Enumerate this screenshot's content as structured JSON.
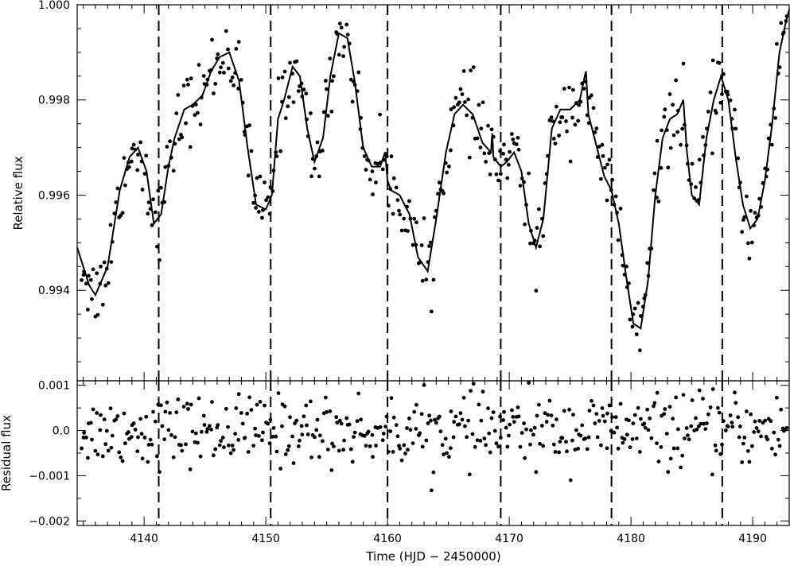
{
  "chart_data": [
    {
      "type": "scatter",
      "ylabel": "Relative flux",
      "xlim": [
        4134.5,
        4193
      ],
      "ylim": [
        0.9921,
        1.0
      ],
      "yticks": [
        "1.000",
        "0.998",
        "0.996",
        "0.994"
      ],
      "ytick_values": [
        1.0,
        0.998,
        0.996,
        0.994
      ],
      "vlines": [
        4141.2,
        4150.4,
        4160.0,
        4169.3,
        4178.4,
        4187.5
      ],
      "model_curve": {
        "x": [
          4134.5,
          4135.5,
          4136.0,
          4137.0,
          4138.0,
          4138.8,
          4139.5,
          4140.2,
          4140.8,
          4141.4,
          4142.0,
          4142.5,
          4143.3,
          4144.0,
          4144.8,
          4145.5,
          4146.2,
          4147.0,
          4147.8,
          4148.5,
          4149.2,
          4150.0,
          4150.5,
          4151.0,
          4151.5,
          4152.2,
          4152.8,
          4153.4,
          4154.0,
          4154.7,
          4155.3,
          4156.0,
          4156.7,
          4157.3,
          4158.0,
          4158.7,
          4159.4,
          4159.8,
          4160.0,
          4160.3,
          4161.0,
          4161.8,
          4162.5,
          4163.3,
          4164.0,
          4164.8,
          4165.5,
          4166.2,
          4167.0,
          4167.8,
          4168.5,
          4168.6,
          4168.7,
          4169.3,
          4169.8,
          4170.4,
          4171.0,
          4171.6,
          4172.2,
          4172.8,
          4173.5,
          4174.2,
          4175.0,
          4175.8,
          4176.2,
          4176.3,
          4176.5,
          4177.0,
          4177.8,
          4178.4,
          4179.0,
          4179.6,
          4180.2,
          4180.8,
          4181.4,
          4182.0,
          4182.6,
          4183.2,
          4183.8,
          4184.3,
          4184.6,
          4185.0,
          4185.6,
          4186.2,
          4186.8,
          4187.4,
          4188.0,
          4188.6,
          4189.2,
          4189.8,
          4190.4,
          4191.0,
          4191.6,
          4192.2,
          4192.7,
          4193.0
        ],
        "y": [
          0.9949,
          0.9941,
          0.9939,
          0.9945,
          0.9961,
          0.9968,
          0.997,
          0.9965,
          0.9954,
          0.9956,
          0.9966,
          0.9972,
          0.9978,
          0.9979,
          0.9981,
          0.9986,
          0.9989,
          0.999,
          0.9984,
          0.997,
          0.9958,
          0.9957,
          0.996,
          0.9976,
          0.998,
          0.9987,
          0.9985,
          0.9974,
          0.9967,
          0.9972,
          0.9985,
          0.9994,
          0.9993,
          0.9984,
          0.997,
          0.9966,
          0.9966,
          0.9969,
          0.9963,
          0.9961,
          0.996,
          0.9956,
          0.9947,
          0.9944,
          0.9955,
          0.9969,
          0.9977,
          0.9979,
          0.9977,
          0.9971,
          0.9969,
          0.9973,
          0.9968,
          0.9966,
          0.9967,
          0.9969,
          0.9965,
          0.9954,
          0.9949,
          0.9955,
          0.9974,
          0.9978,
          0.9978,
          0.998,
          0.9985,
          0.9986,
          0.9977,
          0.9972,
          0.9964,
          0.9961,
          0.9954,
          0.9943,
          0.9933,
          0.9932,
          0.9942,
          0.996,
          0.9972,
          0.9976,
          0.9977,
          0.998,
          0.9969,
          0.996,
          0.9958,
          0.9972,
          0.998,
          0.9985,
          0.998,
          0.9968,
          0.9958,
          0.9953,
          0.9955,
          0.9963,
          0.9975,
          0.999,
          0.9996,
          0.9999
        ]
      },
      "observations": {
        "n": 470,
        "scatter_sd": 0.00045
      }
    },
    {
      "type": "scatter",
      "xlabel": "Time (HJD − 2450000)",
      "ylabel": "Residual flux",
      "xlim": [
        4134.5,
        4193
      ],
      "ylim": [
        -0.0021,
        0.0011
      ],
      "xticks": [
        "4140",
        "4150",
        "4160",
        "4170",
        "4180",
        "4190"
      ],
      "xtick_values": [
        4140,
        4150,
        4160,
        4170,
        4180,
        4190
      ],
      "yticks": [
        "0.001",
        "0.0",
        "−0.001",
        "−0.002"
      ],
      "ytick_values": [
        0.001,
        0.0,
        -0.001,
        -0.002
      ],
      "vlines": [
        4141.2,
        4150.4,
        4160.0,
        4169.3,
        4178.4,
        4187.5
      ],
      "observations": {
        "n": 470,
        "mean": 0.0,
        "scatter_sd": 0.00038
      }
    }
  ]
}
